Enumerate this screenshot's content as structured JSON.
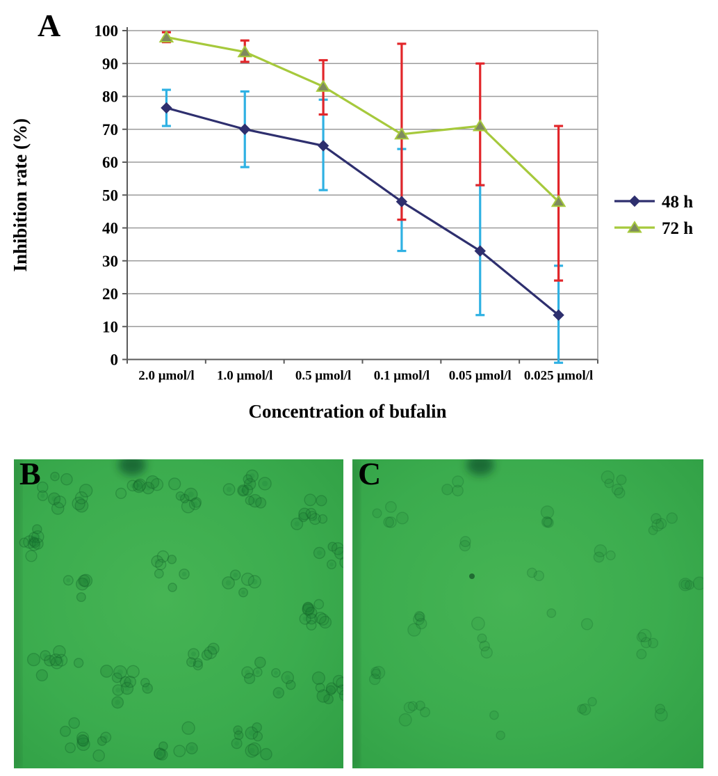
{
  "figure": {
    "panels": {
      "a": {
        "label": "A"
      },
      "b": {
        "label": "B"
      },
      "c": {
        "label": "C"
      }
    }
  },
  "chart_data": {
    "type": "line",
    "title": "",
    "xlabel": "Concentration of bufalin",
    "ylabel": "Inhibition rate (%)",
    "categories": [
      "2.0 μmol/l",
      "1.0 μmol/l",
      "0.5 μmol/l",
      "0.1 μmol/l",
      "0.05 μmol/l",
      "0.025 μmol/l"
    ],
    "ylim": [
      0,
      100
    ],
    "ytick_step": 10,
    "yticks": [
      "0",
      "10",
      "20",
      "30",
      "40",
      "50",
      "60",
      "70",
      "80",
      "90",
      "100"
    ],
    "grid": true,
    "legend_position": "right",
    "series": [
      {
        "name": "48 h",
        "values": [
          76.5,
          70,
          65,
          48,
          33,
          13.5
        ],
        "err_low": [
          71,
          58.5,
          51.5,
          33,
          13.5,
          -1
        ],
        "err_high": [
          82,
          81.5,
          79,
          64,
          53,
          28.5
        ],
        "line_color": "#2e2f6e",
        "marker": "diamond",
        "marker_color": "#2e2f6e",
        "marker_stroke": "#2e2f6e",
        "error_color": "#2fb1e3"
      },
      {
        "name": "72 h",
        "values": [
          98,
          93.5,
          83,
          68.5,
          71,
          48
        ],
        "err_low": [
          96.5,
          90.5,
          74.5,
          42.5,
          53,
          24
        ],
        "err_high": [
          99.5,
          97,
          91,
          96,
          90,
          71
        ],
        "line_color": "#a6c93c",
        "marker": "triangle",
        "marker_color": "#7e8a5f",
        "marker_stroke": "#a6c93c",
        "error_color": "#e2262a"
      }
    ]
  },
  "colors": {
    "grid": "#9b9b9b",
    "axis": "#5a5a5a",
    "text": "#000000",
    "micrograph_green": "#3bac4e",
    "micrograph_green_light": "#46b454",
    "micrograph_green_dark": "#2f9e44"
  }
}
